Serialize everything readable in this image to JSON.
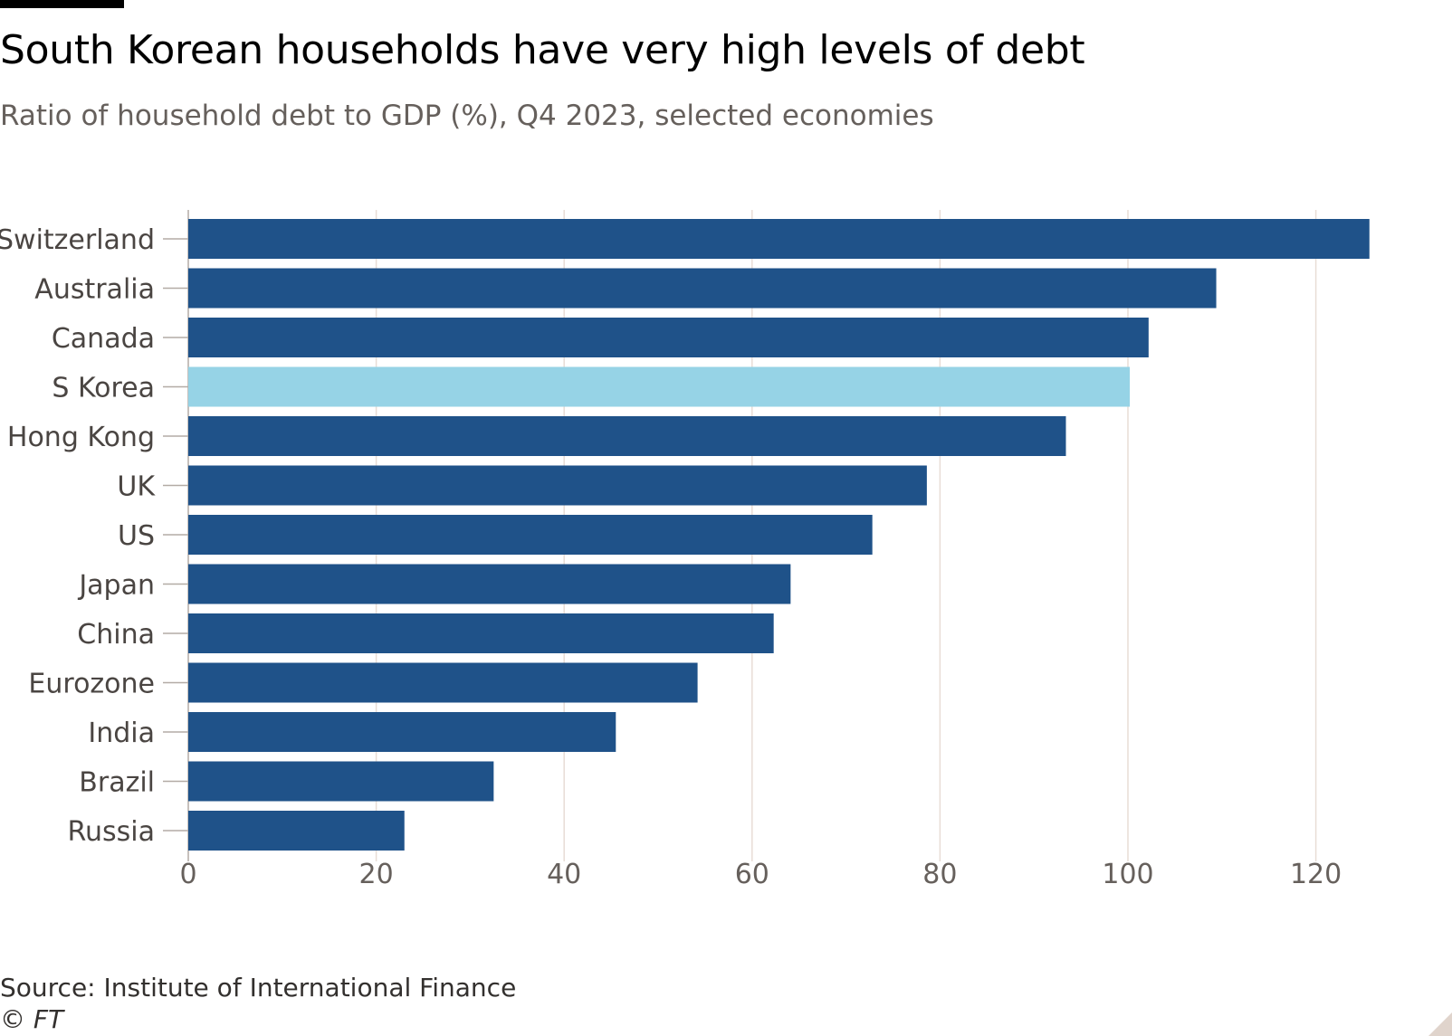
{
  "header": {
    "title": "South Korean households have very high levels of debt",
    "subtitle": "Ratio of household debt to GDP (%), Q4 2023, selected economies"
  },
  "footer": {
    "source": "Source: Institute of International Finance",
    "copyright": "© FT"
  },
  "colors": {
    "bar": "#1f5289",
    "highlight": "#96d3e6",
    "grid": "#e8ddd6",
    "axis": "#b3aba5"
  },
  "chart_data": {
    "type": "bar",
    "orientation": "horizontal",
    "title": "South Korean households have very high levels of debt",
    "subtitle": "Ratio of household debt to GDP (%), Q4 2023, selected economies",
    "xlabel": "",
    "ylabel": "",
    "categories": [
      "Switzerland",
      "Australia",
      "Canada",
      "S Korea",
      "Hong Kong",
      "UK",
      "US",
      "Japan",
      "China",
      "Eurozone",
      "India",
      "Brazil",
      "Russia"
    ],
    "values": [
      125.7,
      109.4,
      102.2,
      100.2,
      93.4,
      78.6,
      72.8,
      64.1,
      62.3,
      54.2,
      45.5,
      32.5,
      23.0
    ],
    "highlight": "S Korea",
    "xlim": [
      0,
      126
    ],
    "xticks": [
      0,
      20,
      40,
      60,
      80,
      100,
      120
    ],
    "grid": true,
    "legend": "none"
  }
}
